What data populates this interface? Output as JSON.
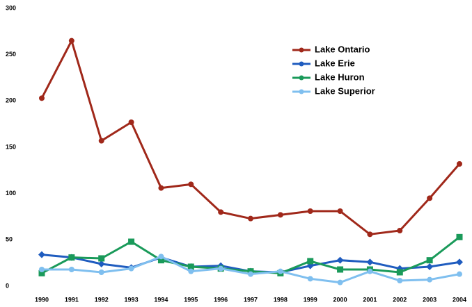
{
  "chart_data": {
    "type": "line",
    "categories": [
      "1990",
      "1991",
      "1992",
      "1993",
      "1994",
      "1995",
      "1996",
      "1997",
      "1998",
      "1999",
      "2000",
      "2001",
      "2002",
      "2003",
      "2004"
    ],
    "series": [
      {
        "name": "Lake Ontario",
        "color": "#a0281a",
        "marker": "circle",
        "values": [
          203,
          265,
          157,
          177,
          106,
          110,
          80,
          73,
          77,
          81,
          81,
          56,
          60,
          95,
          132
        ]
      },
      {
        "name": "Lake Erie",
        "color": "#1f5cbf",
        "marker": "diamond",
        "values": [
          34,
          31,
          24,
          20,
          31,
          21,
          22,
          16,
          15,
          22,
          28,
          26,
          19,
          21,
          26
        ]
      },
      {
        "name": "Lake Huron",
        "color": "#1a9a5a",
        "marker": "square",
        "values": [
          14,
          31,
          30,
          48,
          28,
          21,
          19,
          16,
          14,
          27,
          18,
          18,
          15,
          28,
          53
        ]
      },
      {
        "name": "Lake Superior",
        "color": "#7fbfef",
        "marker": "circle",
        "values": [
          18,
          18,
          15,
          19,
          32,
          16,
          19,
          13,
          16,
          8,
          4,
          16,
          6,
          7,
          13
        ]
      }
    ],
    "ylim": [
      0,
      300
    ],
    "yticks": [
      0,
      50,
      100,
      150,
      200,
      250,
      300
    ],
    "grid": false,
    "legend": "upper right"
  }
}
